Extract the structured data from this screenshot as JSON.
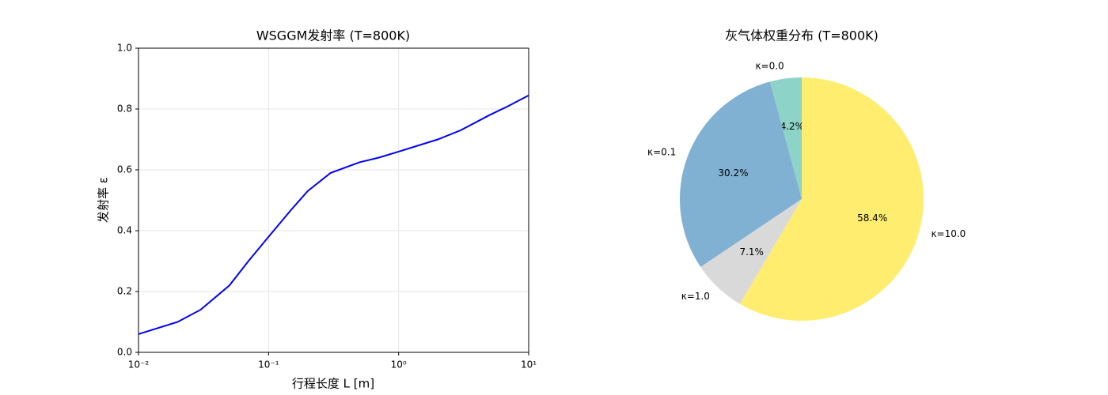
{
  "chart_data": [
    {
      "type": "line",
      "title": "WSGGM发射率 (T=800K)",
      "x_label": "行程长度 L [m]",
      "y_label": "发射率 ε",
      "x": [
        0.01,
        0.02,
        0.03,
        0.05,
        0.07,
        0.1,
        0.15,
        0.2,
        0.3,
        0.5,
        0.7,
        1,
        2,
        3,
        5,
        7,
        10
      ],
      "values": [
        0.06,
        0.1,
        0.14,
        0.22,
        0.3,
        0.38,
        0.47,
        0.53,
        0.59,
        0.625,
        0.64,
        0.66,
        0.7,
        0.73,
        0.78,
        0.81,
        0.845
      ],
      "color": "#0000ff",
      "xlog": true,
      "grid": true,
      "xlim": [
        0.01,
        10
      ],
      "xticks": [
        {
          "value": 0.01,
          "label": "10⁻²"
        },
        {
          "value": 0.1,
          "label": "10⁻¹"
        },
        {
          "value": 1,
          "label": "10⁰"
        },
        {
          "value": 10,
          "label": "10¹"
        }
      ],
      "ylim": [
        0,
        1
      ],
      "yticks": [
        {
          "value": 0,
          "label": "0.0"
        },
        0.2,
        0.4,
        0.6,
        0.8,
        {
          "value": 1,
          "label": "1.0"
        }
      ]
    },
    {
      "type": "pie",
      "title": "灰气体权重分布 (T=800K)",
      "categories": [
        "κ=0.0",
        "κ=0.1",
        "κ=1.0",
        "κ=10.0"
      ],
      "values": [
        4.2,
        30.2,
        7.1,
        58.4
      ],
      "value_labels": [
        "4.2%",
        "30.2%",
        "7.1%",
        "58.4%"
      ],
      "colors": [
        "#8dd3c7",
        "#80b1d3",
        "#d9d9d9",
        "#ffed6f"
      ]
    }
  ]
}
